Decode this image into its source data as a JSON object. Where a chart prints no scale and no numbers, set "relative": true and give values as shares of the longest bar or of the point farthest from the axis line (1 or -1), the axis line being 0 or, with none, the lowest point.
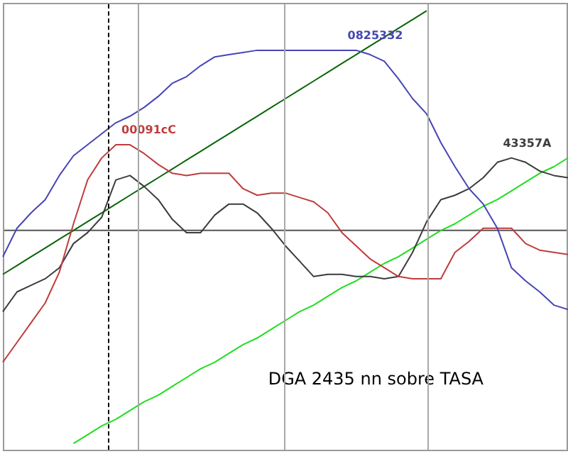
{
  "chart_data": {
    "type": "line",
    "title": "DGA 2435 nn sobre TASA",
    "relative": true,
    "marker": "none",
    "tick_labels": false,
    "categories": [
      null,
      null,
      null,
      null,
      null,
      null,
      null,
      null,
      null,
      null,
      null,
      null,
      null,
      null,
      null,
      null,
      null,
      null,
      null,
      null,
      null,
      null,
      null,
      null,
      null,
      null,
      null,
      null,
      null,
      null,
      null,
      null,
      null,
      null,
      null,
      null,
      null,
      null,
      null,
      null,
      null
    ],
    "series": [
      {
        "name": "0825332",
        "color": "#4646b4",
        "values": [
          -0.12,
          0.01,
          0.08,
          0.14,
          0.25,
          0.34,
          0.39,
          0.44,
          0.49,
          0.52,
          0.56,
          0.61,
          0.67,
          0.7,
          0.75,
          0.79,
          0.8,
          0.81,
          0.82,
          0.82,
          0.82,
          0.82,
          0.82,
          0.82,
          0.82,
          0.82,
          0.8,
          0.77,
          0.69,
          0.6,
          0.53,
          0.4,
          0.29,
          0.19,
          0.12,
          0.01,
          -0.17,
          -0.23,
          -0.28,
          -0.34,
          -0.36
        ]
      },
      {
        "name": "00091cC",
        "color": "#c03c3c",
        "values": [
          -0.6,
          -0.51,
          -0.42,
          -0.33,
          -0.19,
          0.03,
          0.23,
          0.33,
          0.39,
          0.39,
          0.35,
          0.3,
          0.26,
          0.25,
          0.26,
          0.26,
          0.26,
          0.19,
          0.16,
          0.17,
          0.17,
          0.15,
          0.13,
          0.08,
          -0.01,
          -0.07,
          -0.13,
          -0.17,
          -0.21,
          -0.22,
          -0.22,
          -0.22,
          -0.1,
          -0.05,
          0.01,
          0.01,
          0.01,
          -0.06,
          -0.09,
          -0.1,
          -0.11
        ]
      },
      {
        "name": "43357A",
        "color": "#3c3c3c",
        "values": [
          -0.37,
          -0.28,
          -0.25,
          -0.22,
          -0.17,
          -0.06,
          -0.01,
          0.06,
          0.23,
          0.25,
          0.2,
          0.14,
          0.05,
          -0.01,
          -0.01,
          0.07,
          0.12,
          0.12,
          0.08,
          0.01,
          -0.07,
          -0.14,
          -0.21,
          -0.2,
          -0.2,
          -0.21,
          -0.21,
          -0.22,
          -0.21,
          -0.1,
          0.04,
          0.14,
          0.16,
          0.19,
          0.24,
          0.31,
          0.33,
          0.31,
          0.27,
          0.25,
          0.24
        ]
      },
      {
        "color": "#0a640a",
        "values": [
          -0.2,
          -0.16,
          -0.12,
          -0.08,
          -0.04,
          0,
          0.04,
          0.08,
          0.12,
          0.16,
          0.2,
          0.24,
          0.28,
          0.32,
          0.36,
          0.4,
          0.44,
          0.48,
          0.52,
          0.56,
          0.6,
          0.64,
          0.68,
          0.72,
          0.76,
          0.8,
          0.84,
          0.88,
          0.92,
          0.96,
          1.0,
          null,
          null,
          null,
          null,
          null,
          null,
          null,
          null,
          null,
          null
        ]
      },
      {
        "color": "#22dd22",
        "values": [
          null,
          null,
          null,
          null,
          null,
          -0.97,
          -0.93,
          -0.89,
          -0.86,
          -0.82,
          -0.78,
          -0.75,
          -0.71,
          -0.67,
          -0.63,
          -0.6,
          -0.56,
          -0.52,
          -0.49,
          -0.45,
          -0.41,
          -0.37,
          -0.34,
          -0.3,
          -0.26,
          -0.23,
          -0.19,
          -0.15,
          -0.12,
          -0.08,
          -0.04,
          0.0,
          0.03,
          0.07,
          0.11,
          0.14,
          0.18,
          0.22,
          0.26,
          0.29,
          0.33
        ]
      }
    ]
  }
}
